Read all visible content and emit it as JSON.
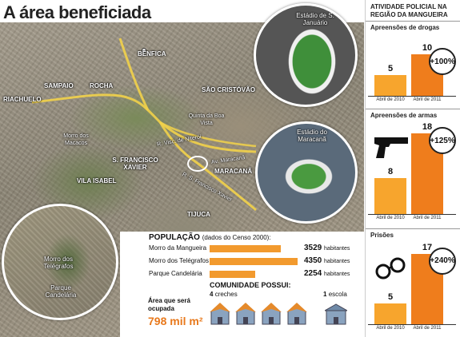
{
  "title": "A área beneficiada",
  "map": {
    "labels": {
      "benfica": "BENFICA",
      "sampaio": "SAMPAIO",
      "rocha": "ROCHA",
      "riachuelo": "RIACHUELO",
      "sao_cristovao": "SÃO CRISTÓVÃO",
      "quinta": "Quinta da Boa Vista",
      "morro_macacos": "Morro dos Macacos",
      "sao_francisco": "S. FRANCISCO XAVIER",
      "vila_isabel": "VILA ISABEL",
      "maracana": "MARACANÃ",
      "tijuca": "TIJUCA",
      "r_viscde": "R. Visc. de Niterói",
      "av_maracana": "Av. Maracanã",
      "r_sfx": "R. S. Francisco Xavier"
    },
    "circles": {
      "estadio_sj": "Estádio de S. Januário",
      "estadio_mara": "Estádio do Maracanã",
      "morro_telegrafos": "Morro dos Telégrafos",
      "parque_candelaria": "Parque Candelária"
    }
  },
  "population": {
    "title": "POPULAÇÃO",
    "source": "(dados do Censo 2000):",
    "unit": "habitantes",
    "rows": [
      {
        "name": "Morro da Mangueira",
        "value": "3529",
        "n": 3529
      },
      {
        "name": "Morro dos Telégrafos",
        "value": "4350",
        "n": 4350
      },
      {
        "name": "Parque Candelária",
        "value": "2254",
        "n": 2254
      }
    ]
  },
  "community": {
    "title": "COMUNIDADE POSSUI:",
    "creches_count": "4",
    "creches_label": "creches",
    "escola_count": "1",
    "escola_label": "escola"
  },
  "area": {
    "label": "Área que será ocupada",
    "value": "798 mil m²"
  },
  "panel": {
    "title": "ATIVIDADE POLICIAL NA REGIÃO DA MANGUEIRA",
    "colors": {
      "bar2010": "#f7a52d",
      "bar2011": "#ef7d1c"
    },
    "sections": [
      {
        "title": "Apreensões de drogas",
        "v2010": 5,
        "v2011": 10,
        "l2010": "5",
        "l2011": "10",
        "change": "+100%",
        "x2010": "Abril de 2010",
        "x2011": "Abril de 2011"
      },
      {
        "title": "Apreensões de armas",
        "v2010": 8,
        "v2011": 18,
        "l2010": "8",
        "l2011": "18",
        "change": "+125%",
        "x2010": "Abril de 2010",
        "x2011": "Abril de 2011",
        "icon": "gun-icon"
      },
      {
        "title": "Prisões",
        "v2010": 5,
        "v2011": 17,
        "l2010": "5",
        "l2011": "17",
        "change": "+240%",
        "x2010": "Abril de 2010",
        "x2011": "Abril de 2011",
        "icon": "handcuffs-icon"
      }
    ]
  }
}
